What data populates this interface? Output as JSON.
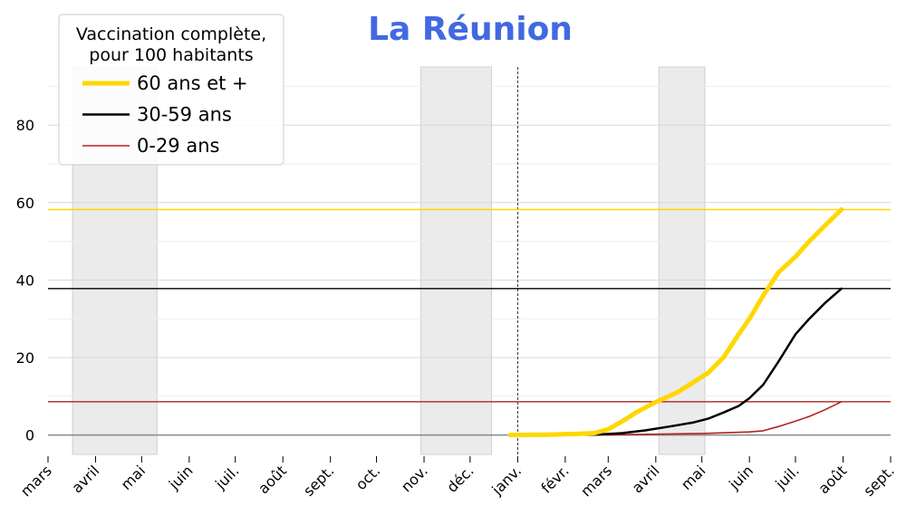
{
  "chart_data": {
    "type": "line",
    "title": "La Réunion",
    "xlabel": "",
    "ylabel": "",
    "ylim": [
      -5,
      95
    ],
    "xlim": [
      "2020-03-01",
      "2021-09-01"
    ],
    "grid": true,
    "legend": {
      "title_lines": [
        "Vaccination complète,",
        "pour 100 habitants"
      ],
      "placement": "top-left"
    },
    "yticks": [
      {
        "value": 0,
        "label": "0"
      },
      {
        "value": 20,
        "label": "20"
      },
      {
        "value": 40,
        "label": "40"
      },
      {
        "value": 60,
        "label": "60"
      },
      {
        "value": 80,
        "label": "80"
      }
    ],
    "xticks": [
      {
        "date": "2020-03-01",
        "label": "mars"
      },
      {
        "date": "2020-04-01",
        "label": "avril"
      },
      {
        "date": "2020-05-01",
        "label": "mai"
      },
      {
        "date": "2020-06-01",
        "label": "juin"
      },
      {
        "date": "2020-07-01",
        "label": "juil."
      },
      {
        "date": "2020-08-01",
        "label": "août"
      },
      {
        "date": "2020-09-01",
        "label": "sept."
      },
      {
        "date": "2020-10-01",
        "label": "oct."
      },
      {
        "date": "2020-11-01",
        "label": "nov."
      },
      {
        "date": "2020-12-01",
        "label": "déc."
      },
      {
        "date": "2021-01-01",
        "label": "janv."
      },
      {
        "date": "2021-02-01",
        "label": "févr."
      },
      {
        "date": "2021-03-01",
        "label": "mars"
      },
      {
        "date": "2021-04-01",
        "label": "avril"
      },
      {
        "date": "2021-05-01",
        "label": "mai"
      },
      {
        "date": "2021-06-01",
        "label": "juin"
      },
      {
        "date": "2021-07-01",
        "label": "juil."
      },
      {
        "date": "2021-08-01",
        "label": "août"
      },
      {
        "date": "2021-09-01",
        "label": "sept."
      }
    ],
    "shaded_periods": [
      [
        "2020-03-17",
        "2020-05-11"
      ],
      [
        "2020-10-30",
        "2020-12-15"
      ],
      [
        "2021-04-03",
        "2021-05-03"
      ]
    ],
    "vline_date": "2021-01-01",
    "series": [
      {
        "name": "60 ans et +",
        "color": "#FFD700",
        "reference_line": 58.2,
        "points": [
          [
            "2020-12-27",
            0
          ],
          [
            "2021-01-20",
            0.1
          ],
          [
            "2021-02-10",
            0.3
          ],
          [
            "2021-02-20",
            0.5
          ],
          [
            "2021-03-01",
            1.5
          ],
          [
            "2021-03-10",
            3.5
          ],
          [
            "2021-03-20",
            6
          ],
          [
            "2021-04-01",
            8.5
          ],
          [
            "2021-04-15",
            11
          ],
          [
            "2021-04-25",
            13.5
          ],
          [
            "2021-05-05",
            16
          ],
          [
            "2021-05-15",
            20
          ],
          [
            "2021-05-25",
            26
          ],
          [
            "2021-06-01",
            30
          ],
          [
            "2021-06-10",
            36
          ],
          [
            "2021-06-20",
            42
          ],
          [
            "2021-07-01",
            46
          ],
          [
            "2021-07-10",
            50
          ],
          [
            "2021-07-20",
            54
          ],
          [
            "2021-07-31",
            58.2
          ]
        ]
      },
      {
        "name": "30-59 ans",
        "color": "#000000",
        "reference_line": 37.8,
        "points": [
          [
            "2020-12-27",
            0
          ],
          [
            "2021-02-20",
            0.1
          ],
          [
            "2021-03-10",
            0.5
          ],
          [
            "2021-03-25",
            1.2
          ],
          [
            "2021-04-10",
            2.2
          ],
          [
            "2021-04-25",
            3.2
          ],
          [
            "2021-05-05",
            4.2
          ],
          [
            "2021-05-15",
            5.8
          ],
          [
            "2021-05-25",
            7.5
          ],
          [
            "2021-06-01",
            9.5
          ],
          [
            "2021-06-10",
            13
          ],
          [
            "2021-06-20",
            19
          ],
          [
            "2021-07-01",
            26
          ],
          [
            "2021-07-10",
            30
          ],
          [
            "2021-07-20",
            34
          ],
          [
            "2021-07-31",
            37.8
          ]
        ]
      },
      {
        "name": "0-29 ans",
        "color": "#B22222",
        "reference_line": 8.6,
        "points": [
          [
            "2020-12-27",
            0
          ],
          [
            "2021-03-01",
            0.05
          ],
          [
            "2021-04-01",
            0.2
          ],
          [
            "2021-05-01",
            0.4
          ],
          [
            "2021-06-01",
            0.8
          ],
          [
            "2021-06-10",
            1.1
          ],
          [
            "2021-06-20",
            2.2
          ],
          [
            "2021-07-01",
            3.6
          ],
          [
            "2021-07-10",
            4.8
          ],
          [
            "2021-07-20",
            6.5
          ],
          [
            "2021-07-31",
            8.6
          ]
        ]
      }
    ]
  }
}
